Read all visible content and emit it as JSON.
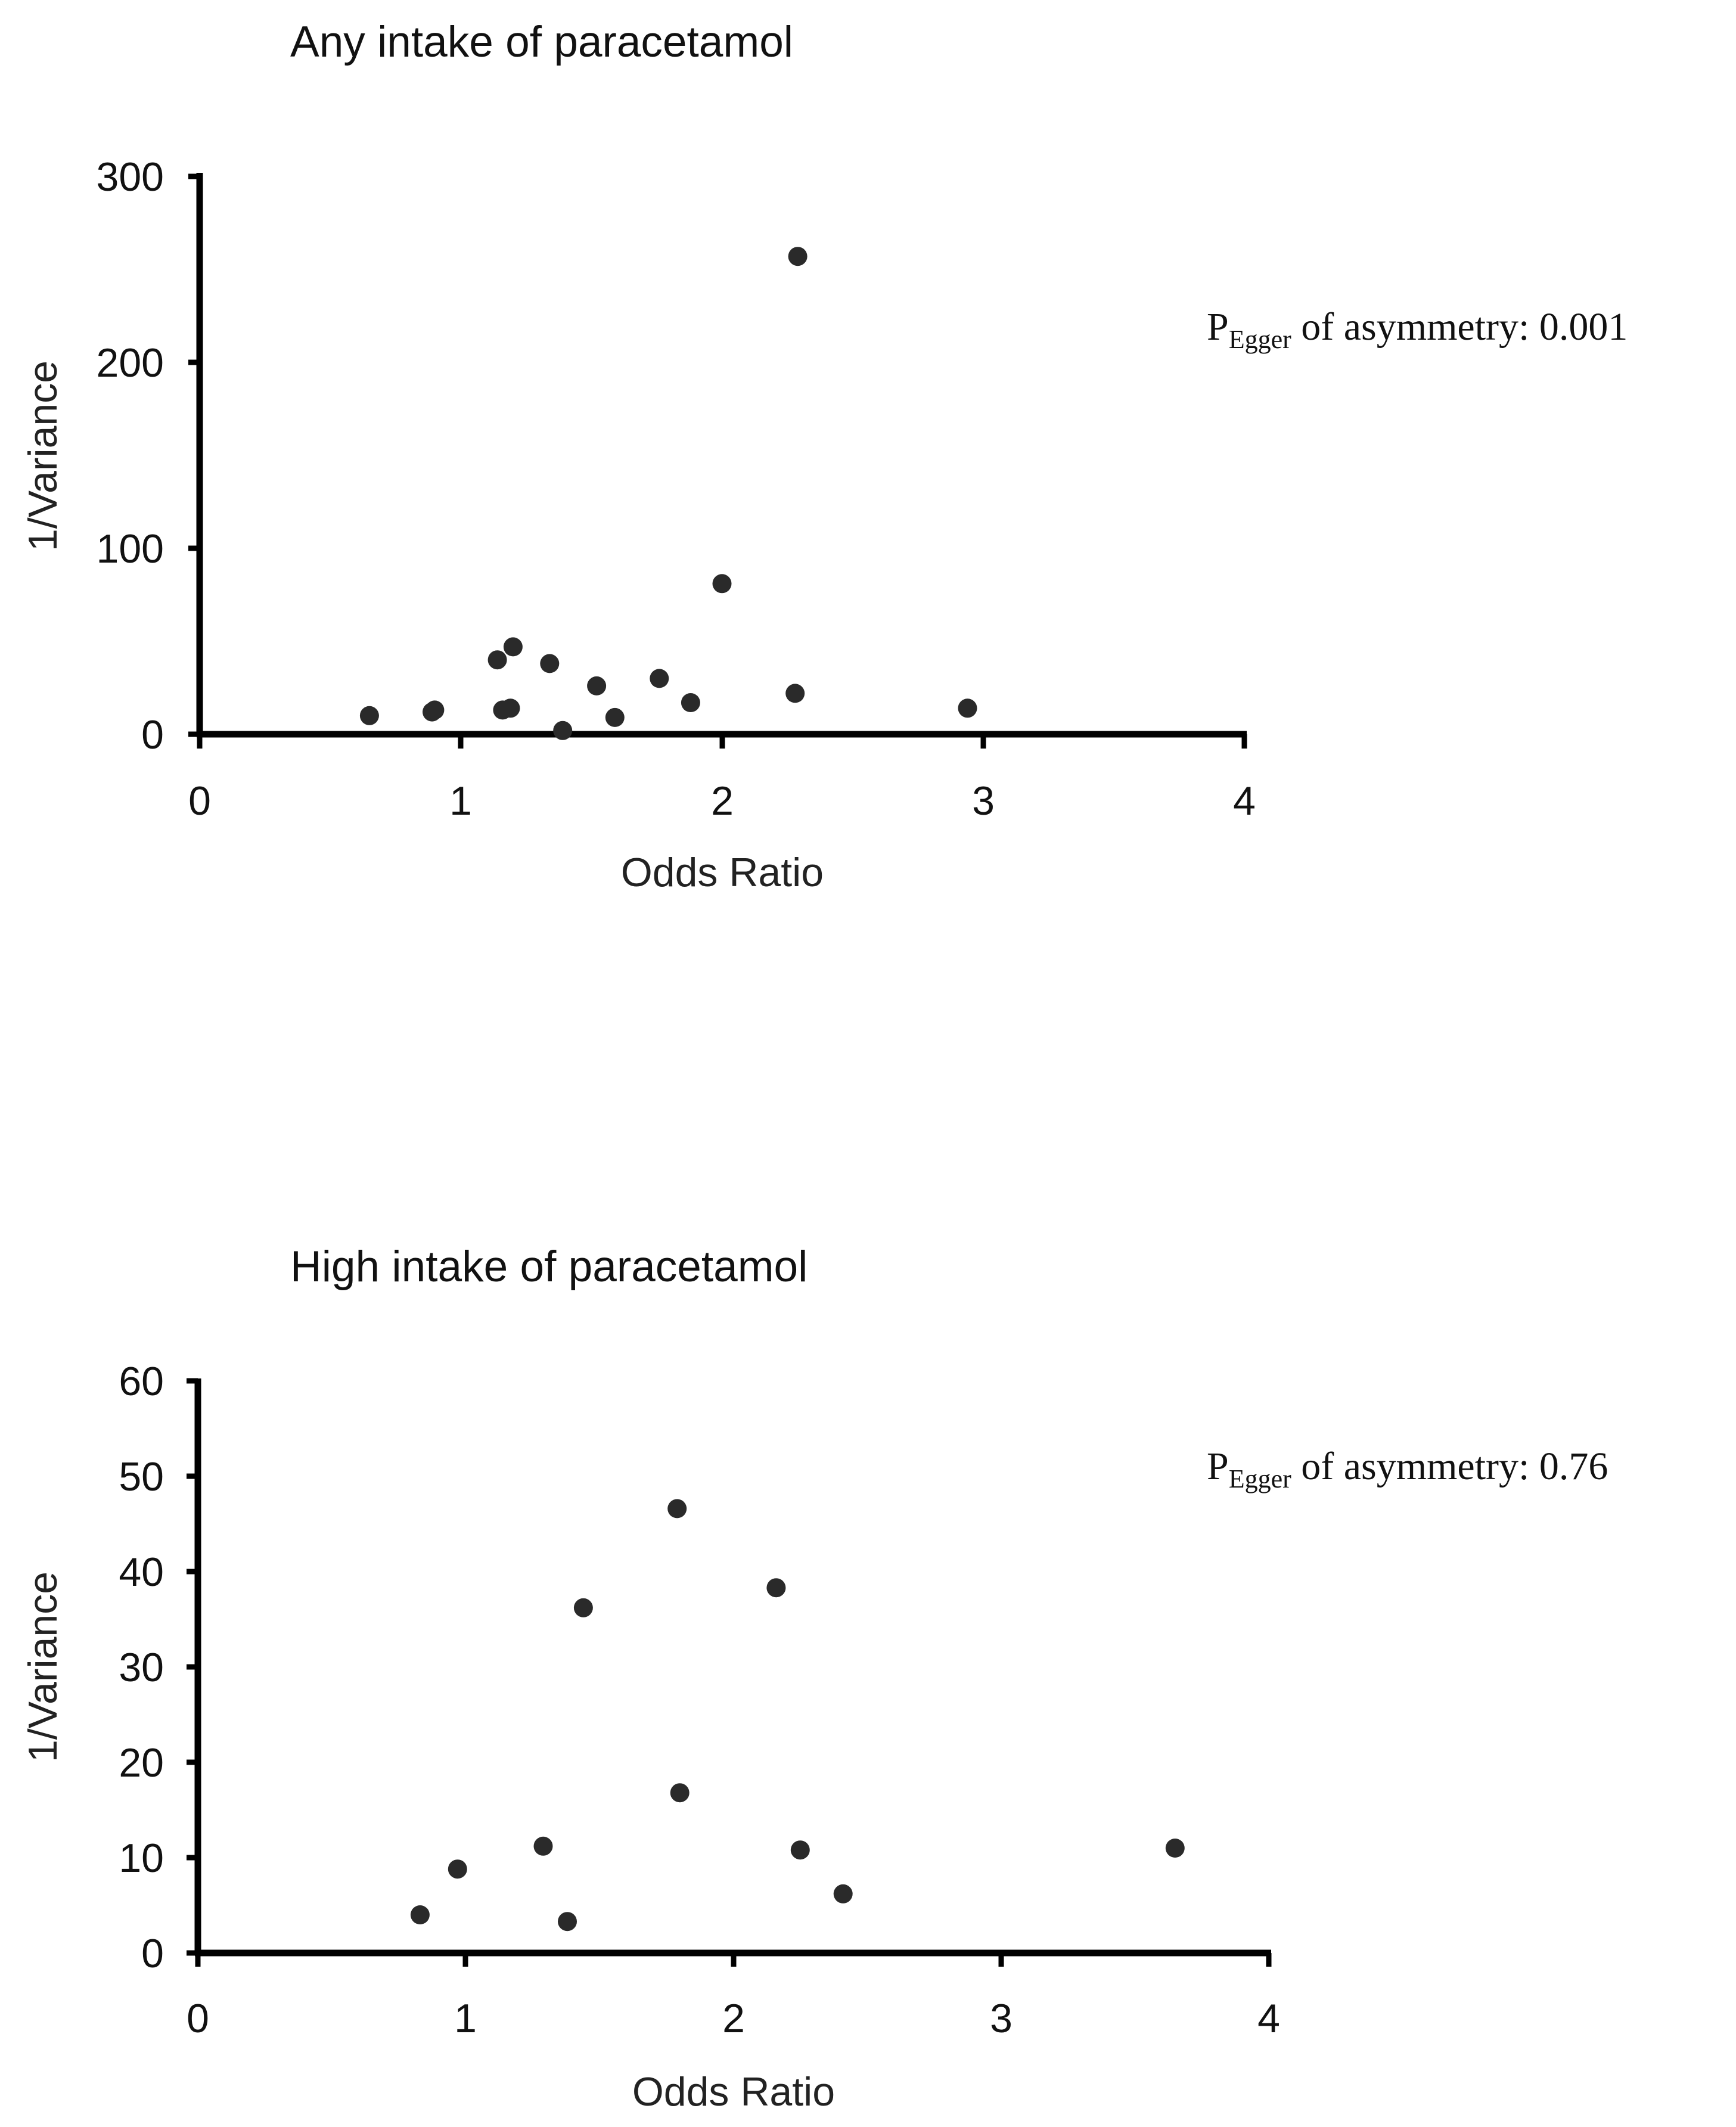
{
  "chart_data": [
    {
      "type": "scatter",
      "title": "Any intake of paracetamol",
      "xlabel": "Odds Ratio",
      "ylabel": "1/Variance",
      "xlim": [
        0,
        4
      ],
      "ylim": [
        0,
        300
      ],
      "xticks": [
        "0",
        "1",
        "2",
        "3",
        "4"
      ],
      "yticks": [
        "0",
        "100",
        "200",
        "300"
      ],
      "annotation": {
        "prefix": "P",
        "subscript": "Egger",
        "text": " of asymmetry: 0.001"
      },
      "points": [
        {
          "x": 0.65,
          "y": 10
        },
        {
          "x": 0.89,
          "y": 12
        },
        {
          "x": 0.9,
          "y": 13
        },
        {
          "x": 1.14,
          "y": 40
        },
        {
          "x": 1.16,
          "y": 13
        },
        {
          "x": 1.19,
          "y": 14
        },
        {
          "x": 1.2,
          "y": 47
        },
        {
          "x": 1.34,
          "y": 38
        },
        {
          "x": 1.39,
          "y": 2
        },
        {
          "x": 1.52,
          "y": 26
        },
        {
          "x": 1.59,
          "y": 9
        },
        {
          "x": 1.76,
          "y": 30
        },
        {
          "x": 1.88,
          "y": 17
        },
        {
          "x": 2.0,
          "y": 81
        },
        {
          "x": 2.28,
          "y": 22
        },
        {
          "x": 2.29,
          "y": 257
        },
        {
          "x": 2.94,
          "y": 14
        }
      ]
    },
    {
      "type": "scatter",
      "title": "High intake of paracetamol",
      "xlabel": "Odds Ratio",
      "ylabel": "1/Variance",
      "xlim": [
        0,
        4
      ],
      "ylim": [
        0,
        60
      ],
      "xticks": [
        "0",
        "1",
        "2",
        "3",
        "4"
      ],
      "yticks": [
        "0",
        "10",
        "20",
        "30",
        "40",
        "50",
        "60"
      ],
      "annotation": {
        "prefix": "P",
        "subscript": "Egger",
        "text": " of asymmetry: 0.76"
      },
      "points": [
        {
          "x": 0.83,
          "y": 4
        },
        {
          "x": 0.97,
          "y": 8.8
        },
        {
          "x": 1.29,
          "y": 11.2
        },
        {
          "x": 1.38,
          "y": 3.3
        },
        {
          "x": 1.44,
          "y": 36.2
        },
        {
          "x": 1.79,
          "y": 46.6
        },
        {
          "x": 1.8,
          "y": 16.8
        },
        {
          "x": 2.16,
          "y": 38.3
        },
        {
          "x": 2.25,
          "y": 10.8
        },
        {
          "x": 2.41,
          "y": 6.2
        },
        {
          "x": 3.65,
          "y": 11
        }
      ]
    }
  ]
}
